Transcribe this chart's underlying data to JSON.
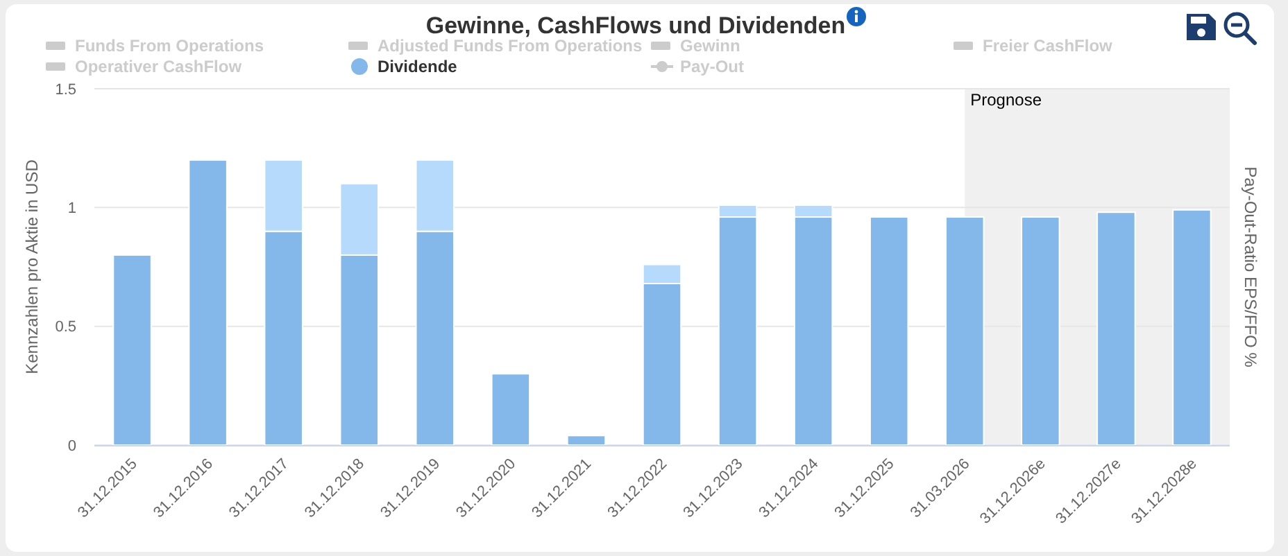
{
  "chart_data": {
    "type": "bar",
    "title": "Gewinne, CashFlows und Dividenden",
    "ylabel": "Kennzahlen pro Aktie in USD",
    "y2label": "Pay-Out-Ratio EPS/FFO %",
    "categories": [
      "31.12.2015",
      "31.12.2016",
      "31.12.2017",
      "31.12.2018",
      "31.12.2019",
      "31.12.2020",
      "31.12.2021",
      "31.12.2022",
      "31.12.2023",
      "31.12.2024",
      "31.12.2025",
      "31.03.2026",
      "31.12.2026e",
      "31.12.2027e",
      "31.12.2028e"
    ],
    "series": [
      {
        "name": "Funds From Operations",
        "type": "line",
        "color": "#cccccc",
        "values": [
          null,
          null,
          null,
          null,
          null,
          null,
          null,
          null,
          null,
          null,
          null,
          null,
          null,
          null,
          null
        ]
      },
      {
        "name": "Adjusted Funds From Operations",
        "type": "line",
        "color": "#cccccc",
        "values": [
          null,
          null,
          null,
          null,
          null,
          null,
          null,
          null,
          null,
          null,
          null,
          null,
          null,
          null,
          null
        ]
      },
      {
        "name": "Gewinn",
        "type": "line",
        "color": "#cccccc",
        "values": [
          null,
          null,
          null,
          null,
          null,
          null,
          null,
          null,
          null,
          null,
          null,
          null,
          null,
          null,
          null
        ]
      },
      {
        "name": "Freier CashFlow",
        "type": "line",
        "color": "#cccccc",
        "values": [
          null,
          null,
          null,
          null,
          null,
          null,
          null,
          null,
          null,
          null,
          null,
          null,
          null,
          null,
          null
        ]
      },
      {
        "name": "Operativer CashFlow",
        "type": "line",
        "color": "#cccccc",
        "values": [
          null,
          null,
          null,
          null,
          null,
          null,
          null,
          null,
          null,
          null,
          null,
          null,
          null,
          null,
          null
        ]
      },
      {
        "name": "Dividende",
        "color": "#84b8eb",
        "values": [
          0.8,
          1.2,
          0.9,
          0.8,
          0.9,
          0.3,
          0.04,
          0.68,
          0.96,
          0.96,
          0.96,
          0.96,
          0.96,
          0.98,
          0.99
        ]
      },
      {
        "name": "Pay-Out",
        "type": "line",
        "marker": "circle",
        "color": "#cccccc",
        "values": [
          null,
          null,
          null,
          null,
          null,
          null,
          null,
          null,
          null,
          null,
          null,
          null,
          null,
          null,
          null
        ]
      },
      {
        "color": "#b5dafc",
        "values": [
          null,
          null,
          0.3,
          0.3,
          0.3,
          null,
          null,
          0.08,
          0.05,
          0.05,
          null,
          null,
          null,
          null,
          null
        ]
      }
    ],
    "stacked": true,
    "ylim": [
      0,
      1.5
    ],
    "yticks": [
      0,
      0.5,
      1,
      1.5
    ],
    "grid": "y",
    "legend": "top",
    "bands": [
      {
        "axis": "x",
        "from": "31.03.2026",
        "to": "31.12.2028e",
        "label": "Prognose",
        "color": "#f0f0f0"
      }
    ]
  }
}
